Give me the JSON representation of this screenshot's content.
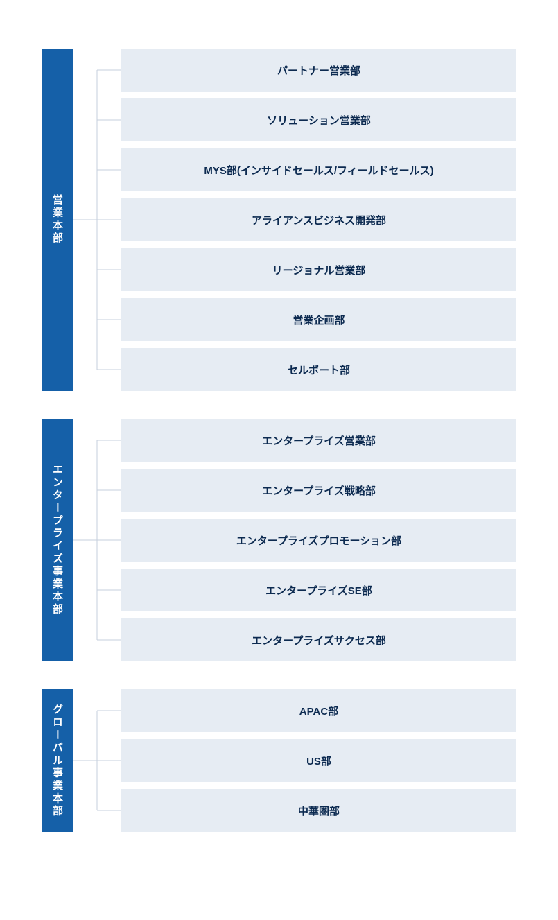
{
  "style": {
    "parent_bg": "#1560a8",
    "parent_text": "#ffffff",
    "child_bg": "#e6ecf3",
    "child_text": "#0c2a50",
    "connector_color": "#c6cfdc",
    "connector_width": 1,
    "child_height": 62,
    "child_gap": 10,
    "parent_width": 45,
    "connector_span": 70,
    "font_size_parent": 15,
    "font_size_child": 15,
    "font_weight": 700,
    "background": "#ffffff"
  },
  "sections": [
    {
      "id": "sales",
      "parent": "営業本部",
      "children": [
        "パートナー営業部",
        "ソリューション営業部",
        "MYS部(インサイドセールス/フィールドセールス)",
        "アライアンスビジネス開発部",
        "リージョナル営業部",
        "営業企画部",
        "セルポート部"
      ]
    },
    {
      "id": "enterprise",
      "parent": "エンタープライズ事業本部",
      "children": [
        "エンタープライズ営業部",
        "エンタープライズ戦略部",
        "エンタープライズプロモーション部",
        "エンタープライズSE部",
        "エンタープライズサクセス部"
      ]
    },
    {
      "id": "global",
      "parent": "グローバル事業本部",
      "children": [
        "APAC部",
        "US部",
        "中華圏部"
      ]
    }
  ]
}
